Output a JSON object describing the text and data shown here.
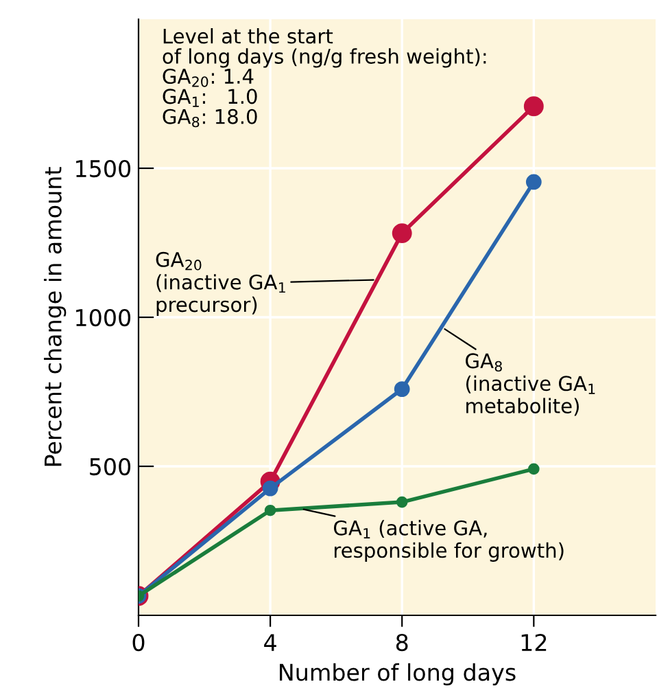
{
  "chart_data": {
    "type": "line",
    "xlabel": "Number of long days",
    "ylabel": "Percent change in amount",
    "x": [
      0,
      4,
      8,
      12
    ],
    "series": [
      {
        "name": "GA$_{20}$\n(inactive GA$_{1}$\nprecursor)",
        "color": "#c4123f",
        "values": [
          65,
          449,
          1282,
          1708
        ]
      },
      {
        "name": "GA$_{8}$\n(inactive GA$_{1}$\nmetabolite)",
        "color": "#2a66ad",
        "values": [
          65,
          426,
          759,
          1454
        ]
      },
      {
        "name": "GA$_{1}$ (active GA,\nresponsible for growth)",
        "color": "#1a7d3c",
        "values": [
          65,
          352,
          380,
          491
        ]
      }
    ],
    "annotations": [
      "Level at the start\nof long days (ng/g fresh weight):\nGA$_{20}$: 1.4\nGA$_{1}$:   1.0\nGA$_{8}$: 18.0"
    ],
    "xlim": [
      0,
      15.7
    ],
    "ylim": [
      0,
      2000
    ],
    "xticks": [
      0,
      4,
      8,
      12
    ],
    "yticks": [
      500,
      1000,
      1500
    ],
    "grid": true,
    "legend": false,
    "marker": "circle",
    "line_style": "solid"
  }
}
